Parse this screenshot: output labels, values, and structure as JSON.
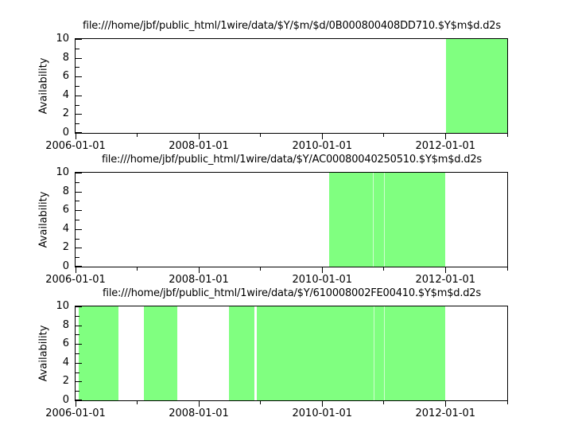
{
  "page": {
    "background": "#ffffff",
    "axis_color": "#000000",
    "fill_color": "#80ff80"
  },
  "chart_data": [
    {
      "type": "area",
      "title": "file:///home/jbf/public_html/1wire/data/$Y/$m/$d/0B000800408DD710.$Y$m$d.d2s",
      "xlabel": "",
      "ylabel": "Availability",
      "ylim": [
        0,
        10
      ],
      "yticks": [
        0,
        2,
        4,
        6,
        8,
        10
      ],
      "minor_yticks": [
        1,
        3,
        5,
        7,
        9
      ],
      "xlim": [
        "2006-01-01",
        "2013-01-01"
      ],
      "xticks": [
        "2006-01-01",
        "2008-01-01",
        "2010-01-01",
        "2012-01-01"
      ],
      "minor_xticks": [
        "2007-01-01",
        "2009-01-01",
        "2011-01-01",
        "2013-01-01"
      ],
      "grid": false,
      "legend": "none",
      "fill_color": "#80ff80",
      "intervals": [
        {
          "start": "2012-01-05",
          "end": "2013-01-01",
          "value": 10
        }
      ],
      "gap_lines": []
    },
    {
      "type": "area",
      "title": "file:///home/jbf/public_html/1wire/data/$Y/AC00080040250510.$Y$m$d.d2s",
      "xlabel": "",
      "ylabel": "Availability",
      "ylim": [
        0,
        10
      ],
      "yticks": [
        0,
        2,
        4,
        6,
        8,
        10
      ],
      "minor_yticks": [
        1,
        3,
        5,
        7,
        9
      ],
      "xlim": [
        "2006-01-01",
        "2013-01-01"
      ],
      "xticks": [
        "2006-01-01",
        "2008-01-01",
        "2010-01-01",
        "2012-01-01"
      ],
      "minor_xticks": [
        "2007-01-01",
        "2009-01-01",
        "2011-01-01",
        "2013-01-01"
      ],
      "grid": false,
      "legend": "none",
      "fill_color": "#80ff80",
      "intervals": [
        {
          "start": "2010-02-13",
          "end": "2011-12-31",
          "value": 10
        }
      ],
      "gap_lines": [
        "2010-10-28",
        "2011-01-02"
      ]
    },
    {
      "type": "area",
      "title": "file:///home/jbf/public_html/1wire/data/$Y/610008002FE00410.$Y$m$d.d2s",
      "xlabel": "",
      "ylabel": "Availability",
      "ylim": [
        0,
        10
      ],
      "yticks": [
        0,
        2,
        4,
        6,
        8,
        10
      ],
      "minor_yticks": [
        1,
        3,
        5,
        7,
        9
      ],
      "xlim": [
        "2006-01-01",
        "2013-01-01"
      ],
      "xticks": [
        "2006-01-01",
        "2008-01-01",
        "2010-01-01",
        "2012-01-01"
      ],
      "minor_xticks": [
        "2007-01-01",
        "2009-01-01",
        "2011-01-01",
        "2013-01-01"
      ],
      "grid": false,
      "legend": "none",
      "fill_color": "#80ff80",
      "intervals": [
        {
          "start": "2006-01-18",
          "end": "2006-09-13",
          "value": 10
        },
        {
          "start": "2007-02-08",
          "end": "2007-08-27",
          "value": 10
        },
        {
          "start": "2008-06-27",
          "end": "2008-11-27",
          "value": 10
        },
        {
          "start": "2008-12-09",
          "end": "2011-12-31",
          "value": 10
        }
      ],
      "gap_lines": [
        "2010-11-02",
        "2010-12-31"
      ]
    }
  ]
}
